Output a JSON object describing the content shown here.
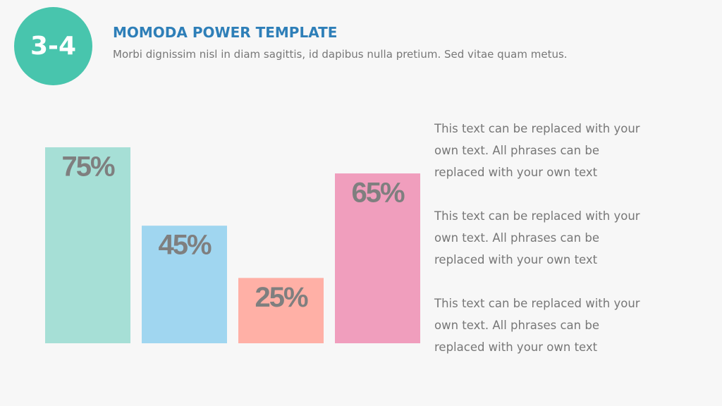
{
  "badge": "3-4",
  "header": {
    "title": "MOMODA POWER TEMPLATE",
    "subtitle": "Morbi dignissim nisl in diam sagittis, id dapibus nulla pretium. Sed vitae quam metus."
  },
  "chart_data": {
    "type": "bar",
    "values": [
      75,
      45,
      25,
      65
    ],
    "value_labels": [
      "75%",
      "45%",
      "25%",
      "65%"
    ],
    "colors": [
      "#a6dfd6",
      "#a0d6f0",
      "#ffb0a6",
      "#f09ebd"
    ],
    "ylim": [
      0,
      100
    ]
  },
  "paragraphs": [
    "This text can be replaced with your own text. All phrases can be replaced with your own text",
    "This text can be replaced with your own text. All phrases can be replaced with your own text",
    "This text can be replaced with your own text. All phrases can be replaced with your own text"
  ]
}
